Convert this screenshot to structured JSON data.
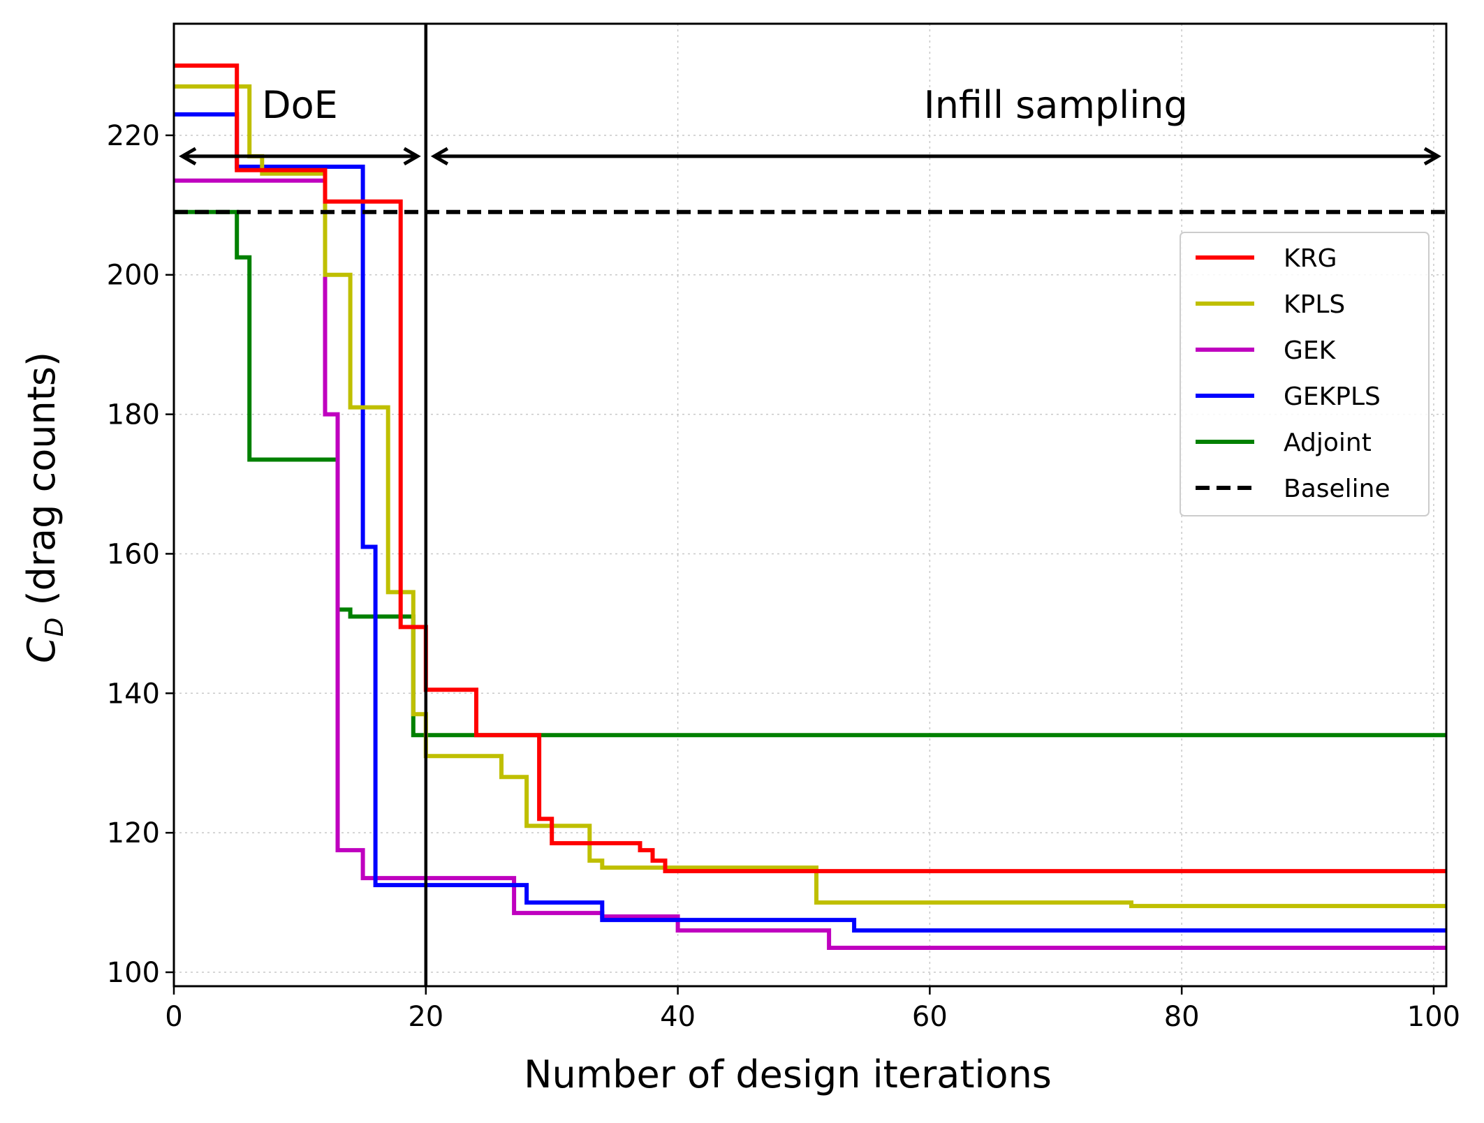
{
  "chart_data": {
    "type": "line",
    "step": true,
    "xlabel": "Number of design iterations",
    "ylabel_main": "C",
    "ylabel_sub": "D",
    "ylabel_rest": " (drag counts)",
    "xlim": [
      0,
      101
    ],
    "ylim": [
      98,
      236
    ],
    "xticks": [
      0,
      20,
      40,
      60,
      80,
      100
    ],
    "yticks": [
      100,
      120,
      140,
      160,
      180,
      200,
      220
    ],
    "grid": true,
    "legend_position": "upper-right",
    "phase_divider_x": 20,
    "annotations": [
      {
        "text": "DoE",
        "x": 10,
        "y": 222.5,
        "arrow_from": 0.5,
        "arrow_to": 19.5,
        "arrow_y": 217
      },
      {
        "text": "Infill sampling",
        "x": 70,
        "y": 222.5,
        "arrow_from": 20.5,
        "arrow_to": 100.5,
        "arrow_y": 217
      }
    ],
    "series": [
      {
        "name": "KRG",
        "color": "#ff0000",
        "x": [
          0,
          5,
          5,
          12,
          12,
          18,
          18,
          20,
          20,
          24,
          24,
          29,
          29,
          30,
          30,
          37,
          37,
          38,
          38,
          39,
          39,
          101
        ],
        "y": [
          230,
          230,
          215,
          215,
          210.5,
          210.5,
          149.5,
          149.5,
          140.5,
          140.5,
          134,
          134,
          122,
          122,
          118.5,
          118.5,
          117.5,
          117.5,
          116,
          116,
          114.5,
          114.5
        ]
      },
      {
        "name": "KPLS",
        "color": "#bfbf00",
        "x": [
          0,
          6,
          6,
          7,
          7,
          12,
          12,
          14,
          14,
          17,
          17,
          19,
          19,
          20,
          20,
          26,
          26,
          28,
          28,
          33,
          33,
          34,
          34,
          51,
          51,
          76,
          76,
          101
        ],
        "y": [
          227,
          227,
          217,
          217,
          214.5,
          214.5,
          200,
          200,
          181,
          181,
          154.5,
          154.5,
          137,
          137,
          131,
          131,
          128,
          128,
          121,
          121,
          116,
          116,
          115,
          115,
          110,
          110,
          109.5,
          109.5
        ]
      },
      {
        "name": "GEK",
        "color": "#bf00bf",
        "x": [
          0,
          12,
          12,
          13,
          13,
          15,
          15,
          27,
          27,
          34,
          34,
          40,
          40,
          52,
          52,
          101
        ],
        "y": [
          213.5,
          213.5,
          180,
          180,
          117.5,
          117.5,
          113.5,
          113.5,
          108.5,
          108.5,
          108,
          108,
          106,
          106,
          103.5,
          103.5
        ]
      },
      {
        "name": "GEKPLS",
        "color": "#0000ff",
        "x": [
          0,
          5,
          5,
          15,
          15,
          16,
          16,
          28,
          28,
          34,
          34,
          54,
          54,
          101
        ],
        "y": [
          223,
          223,
          215.5,
          215.5,
          161,
          161,
          112.5,
          112.5,
          110,
          110,
          107.5,
          107.5,
          106,
          106
        ]
      },
      {
        "name": "Adjoint",
        "color": "#008000",
        "x": [
          0,
          5,
          5,
          6,
          6,
          13,
          13,
          14,
          14,
          19,
          19,
          101
        ],
        "y": [
          209,
          209,
          202.5,
          202.5,
          173.5,
          173.5,
          152,
          152,
          151,
          151,
          134,
          134
        ]
      },
      {
        "name": "Baseline",
        "color": "#000000",
        "dashed": true,
        "x": [
          0,
          101
        ],
        "y": [
          209,
          209
        ]
      }
    ]
  }
}
